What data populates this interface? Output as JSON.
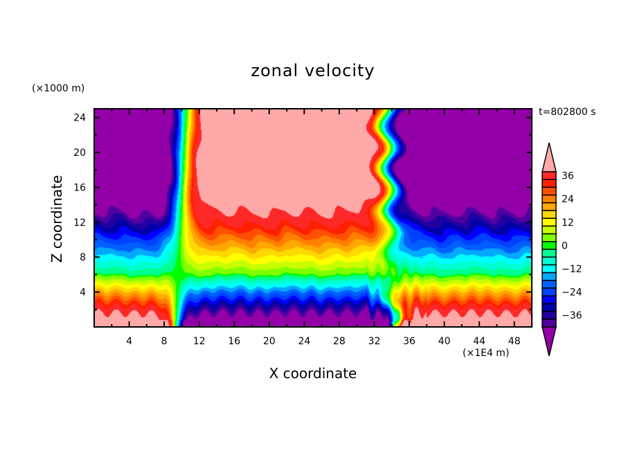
{
  "chart_data": {
    "type": "heatmap",
    "title": "zonal velocity",
    "xlabel": "X coordinate",
    "ylabel": "Z coordinate",
    "x_unit": "(×1E4 m)",
    "y_unit": "(×1000 m)",
    "annotation": "t=802800 s",
    "xlim": [
      0,
      50
    ],
    "ylim": [
      0,
      25
    ],
    "x_ticks": [
      4,
      8,
      12,
      16,
      20,
      24,
      28,
      32,
      36,
      40,
      44,
      48
    ],
    "y_ticks": [
      4,
      8,
      12,
      16,
      20,
      24
    ],
    "x_minor_step": 2,
    "y_minor_step": 2,
    "grid": false,
    "colorbar": {
      "placement": "right",
      "levels": [
        -42,
        -38,
        -34,
        -30,
        -26,
        -22,
        -18,
        -14,
        -10,
        -6,
        -2,
        2,
        6,
        10,
        14,
        18,
        22,
        26,
        30,
        34,
        38,
        42
      ],
      "tick_labels": [
        "36",
        "24",
        "12",
        "0",
        "-12",
        "-24",
        "-36"
      ],
      "tick_values": [
        36,
        24,
        12,
        0,
        -12,
        -24,
        -36
      ],
      "colors": [
        "#9400a8",
        "#5000a0",
        "#2000a0",
        "#0000a8",
        "#0000ff",
        "#0040ff",
        "#0060ff",
        "#00a8ff",
        "#00ffff",
        "#00ffd0",
        "#00ff90",
        "#00ff00",
        "#80ff00",
        "#c8ff00",
        "#ffff00",
        "#ffd800",
        "#ffa800",
        "#ff8000",
        "#ff5000",
        "#ff2000",
        "#ff2828",
        "#ffa8a8"
      ],
      "over_color": "#ffa8a8",
      "under_color": "#9400a8",
      "extend": "both"
    },
    "field_description": "Vertical cross-section of zonal velocity (x 0-50, z 0-25). Strong positive jet (>42) aloft between x~10 and x~33, negative (<-42) aloft for x<8 and x>37; sign reverses near the surface; sharp transition bands near x~9 and x~34."
  }
}
